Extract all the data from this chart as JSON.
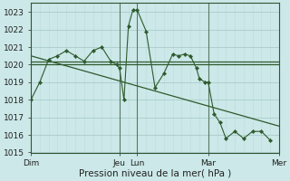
{
  "title": "",
  "xlabel": "Pression niveau de la mer( hPa )",
  "ylabel": "",
  "ylim": [
    1015,
    1023.5
  ],
  "yticks": [
    1015,
    1016,
    1017,
    1018,
    1019,
    1020,
    1021,
    1022,
    1023
  ],
  "background_color": "#cce8e8",
  "grid_color_major": "#aacccc",
  "grid_color_minor": "#bbdddd",
  "line_color": "#2d5a2d",
  "marker_color": "#2d5a2d",
  "vline_color": "#335533",
  "day_labels": [
    "Dim",
    "",
    "",
    "Jeu",
    "Lun",
    "",
    "",
    "Mar",
    "",
    "Mer"
  ],
  "xtick_labels": [
    "Dim",
    "Jeu",
    "Lun",
    "Mar",
    "Mer"
  ],
  "xtick_positions": [
    0,
    60,
    72,
    120,
    168
  ],
  "series_main": [
    [
      0,
      1018.0
    ],
    [
      6,
      1019.0
    ],
    [
      12,
      1020.3
    ],
    [
      18,
      1020.5
    ],
    [
      24,
      1020.8
    ],
    [
      30,
      1020.5
    ],
    [
      36,
      1020.2
    ],
    [
      42,
      1020.8
    ],
    [
      48,
      1021.0
    ],
    [
      54,
      1020.2
    ],
    [
      58,
      1020.0
    ],
    [
      60,
      1019.8
    ],
    [
      63,
      1018.0
    ],
    [
      66,
      1022.2
    ],
    [
      69,
      1023.1
    ],
    [
      72,
      1023.1
    ],
    [
      78,
      1021.9
    ],
    [
      84,
      1018.7
    ],
    [
      90,
      1019.5
    ],
    [
      96,
      1020.6
    ],
    [
      100,
      1020.5
    ],
    [
      104,
      1020.6
    ],
    [
      108,
      1020.5
    ],
    [
      112,
      1019.8
    ],
    [
      114,
      1019.2
    ],
    [
      118,
      1019.0
    ],
    [
      120,
      1019.0
    ],
    [
      124,
      1017.2
    ],
    [
      128,
      1016.7
    ],
    [
      132,
      1015.8
    ],
    [
      138,
      1016.2
    ],
    [
      144,
      1015.8
    ],
    [
      150,
      1016.2
    ],
    [
      156,
      1016.2
    ],
    [
      162,
      1015.7
    ]
  ],
  "series_flat": [
    [
      0,
      1020.2
    ],
    [
      168,
      1020.2
    ]
  ],
  "series_flat2": [
    [
      0,
      1020.0
    ],
    [
      168,
      1020.0
    ]
  ],
  "series_diagonal": [
    [
      0,
      1020.5
    ],
    [
      168,
      1016.5
    ]
  ],
  "xlim": [
    0,
    168
  ]
}
